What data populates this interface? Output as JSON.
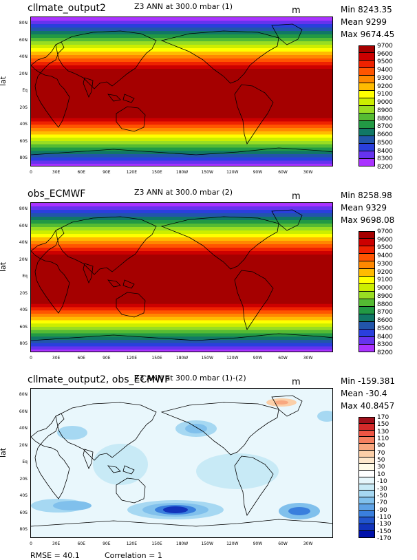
{
  "panels": [
    {
      "case": "cllmate_output2",
      "variable": "Z3 ANN at 300.0 mbar (1)",
      "units": "m",
      "stats": {
        "min": "Min 8243.35",
        "mean": "Mean 9299",
        "max": "Max 9674.45"
      },
      "ylabel": "lat",
      "yticks": [
        "80N",
        "60N",
        "40N",
        "20N",
        "Eq",
        "20S",
        "40S",
        "60S",
        "80S"
      ],
      "xticks": [
        "0",
        "30E",
        "60E",
        "90E",
        "120E",
        "150E",
        "180W",
        "150W",
        "120W",
        "90W",
        "60W",
        "30W"
      ],
      "colorbar_labels": [
        "9700",
        "9600",
        "9500",
        "9400",
        "9300",
        "9200",
        "9100",
        "9000",
        "8900",
        "8800",
        "8700",
        "8600",
        "8500",
        "8400",
        "8300",
        "8200"
      ],
      "colors": [
        "#a50000",
        "#cc0000",
        "#ee2200",
        "#ff5500",
        "#ff8800",
        "#ffbb00",
        "#ffff00",
        "#ccee00",
        "#99dd22",
        "#55bb33",
        "#229944",
        "#117766",
        "#2255aa",
        "#2a3fdd",
        "#6633ee",
        "#aa33ff"
      ]
    },
    {
      "case": "obs_ECMWF",
      "variable": "Z3 ANN at 300.0 mbar (2)",
      "units": "m",
      "stats": {
        "min": "Min 8258.98",
        "mean": "Mean 9329",
        "max": "Max 9698.08"
      },
      "ylabel": "lat",
      "yticks": [
        "80N",
        "60N",
        "40N",
        "20N",
        "Eq",
        "20S",
        "40S",
        "60S",
        "80S"
      ],
      "xticks": [
        "0",
        "30E",
        "60E",
        "90E",
        "120E",
        "150E",
        "180W",
        "150W",
        "120W",
        "90W",
        "60W",
        "30W"
      ],
      "colorbar_labels": [
        "9700",
        "9600",
        "9500",
        "9400",
        "9300",
        "9200",
        "9100",
        "9000",
        "8900",
        "8800",
        "8700",
        "8600",
        "8500",
        "8400",
        "8300",
        "8200"
      ],
      "colors": [
        "#a50000",
        "#cc0000",
        "#ee2200",
        "#ff5500",
        "#ff8800",
        "#ffbb00",
        "#ffff00",
        "#ccee00",
        "#99dd22",
        "#55bb33",
        "#229944",
        "#117766",
        "#2255aa",
        "#2a3fdd",
        "#6633ee",
        "#aa33ff"
      ]
    },
    {
      "case": "cllmate_output2, obs_ECMWF",
      "variable": "Z3 ANN at 300.0 mbar (1)-(2)",
      "units": "m",
      "stats": {
        "min": "Min -159.381",
        "mean": "Mean -30.4",
        "max": "Max 40.8457"
      },
      "ylabel": "lat",
      "yticks": [
        "80N",
        "60N",
        "40N",
        "20N",
        "Eq",
        "20S",
        "40S",
        "60S",
        "80S"
      ],
      "xticks": [
        "0",
        "30E",
        "60E",
        "90E",
        "120E",
        "150E",
        "180W",
        "150W",
        "120W",
        "90W",
        "60W",
        "30W"
      ],
      "colorbar_labels": [
        "170",
        "150",
        "130",
        "110",
        "90",
        "70",
        "50",
        "30",
        "10",
        "-10",
        "-30",
        "-50",
        "-70",
        "-90",
        "-110",
        "-130",
        "-150",
        "-170"
      ],
      "colors": [
        "#a0101a",
        "#d42a2a",
        "#ee5544",
        "#f58060",
        "#f8a880",
        "#fbcfa8",
        "#fde8cc",
        "#fffbe8",
        "#ffffff",
        "#e6f6fb",
        "#c8eaf6",
        "#a6d8f2",
        "#80c0ec",
        "#5ea2e6",
        "#3a7fdd",
        "#2255cc",
        "#1133bb",
        "#0011aa"
      ]
    }
  ],
  "footer": {
    "rmse": "RMSE = 40.1",
    "correlation": "Correlation = 1"
  }
}
